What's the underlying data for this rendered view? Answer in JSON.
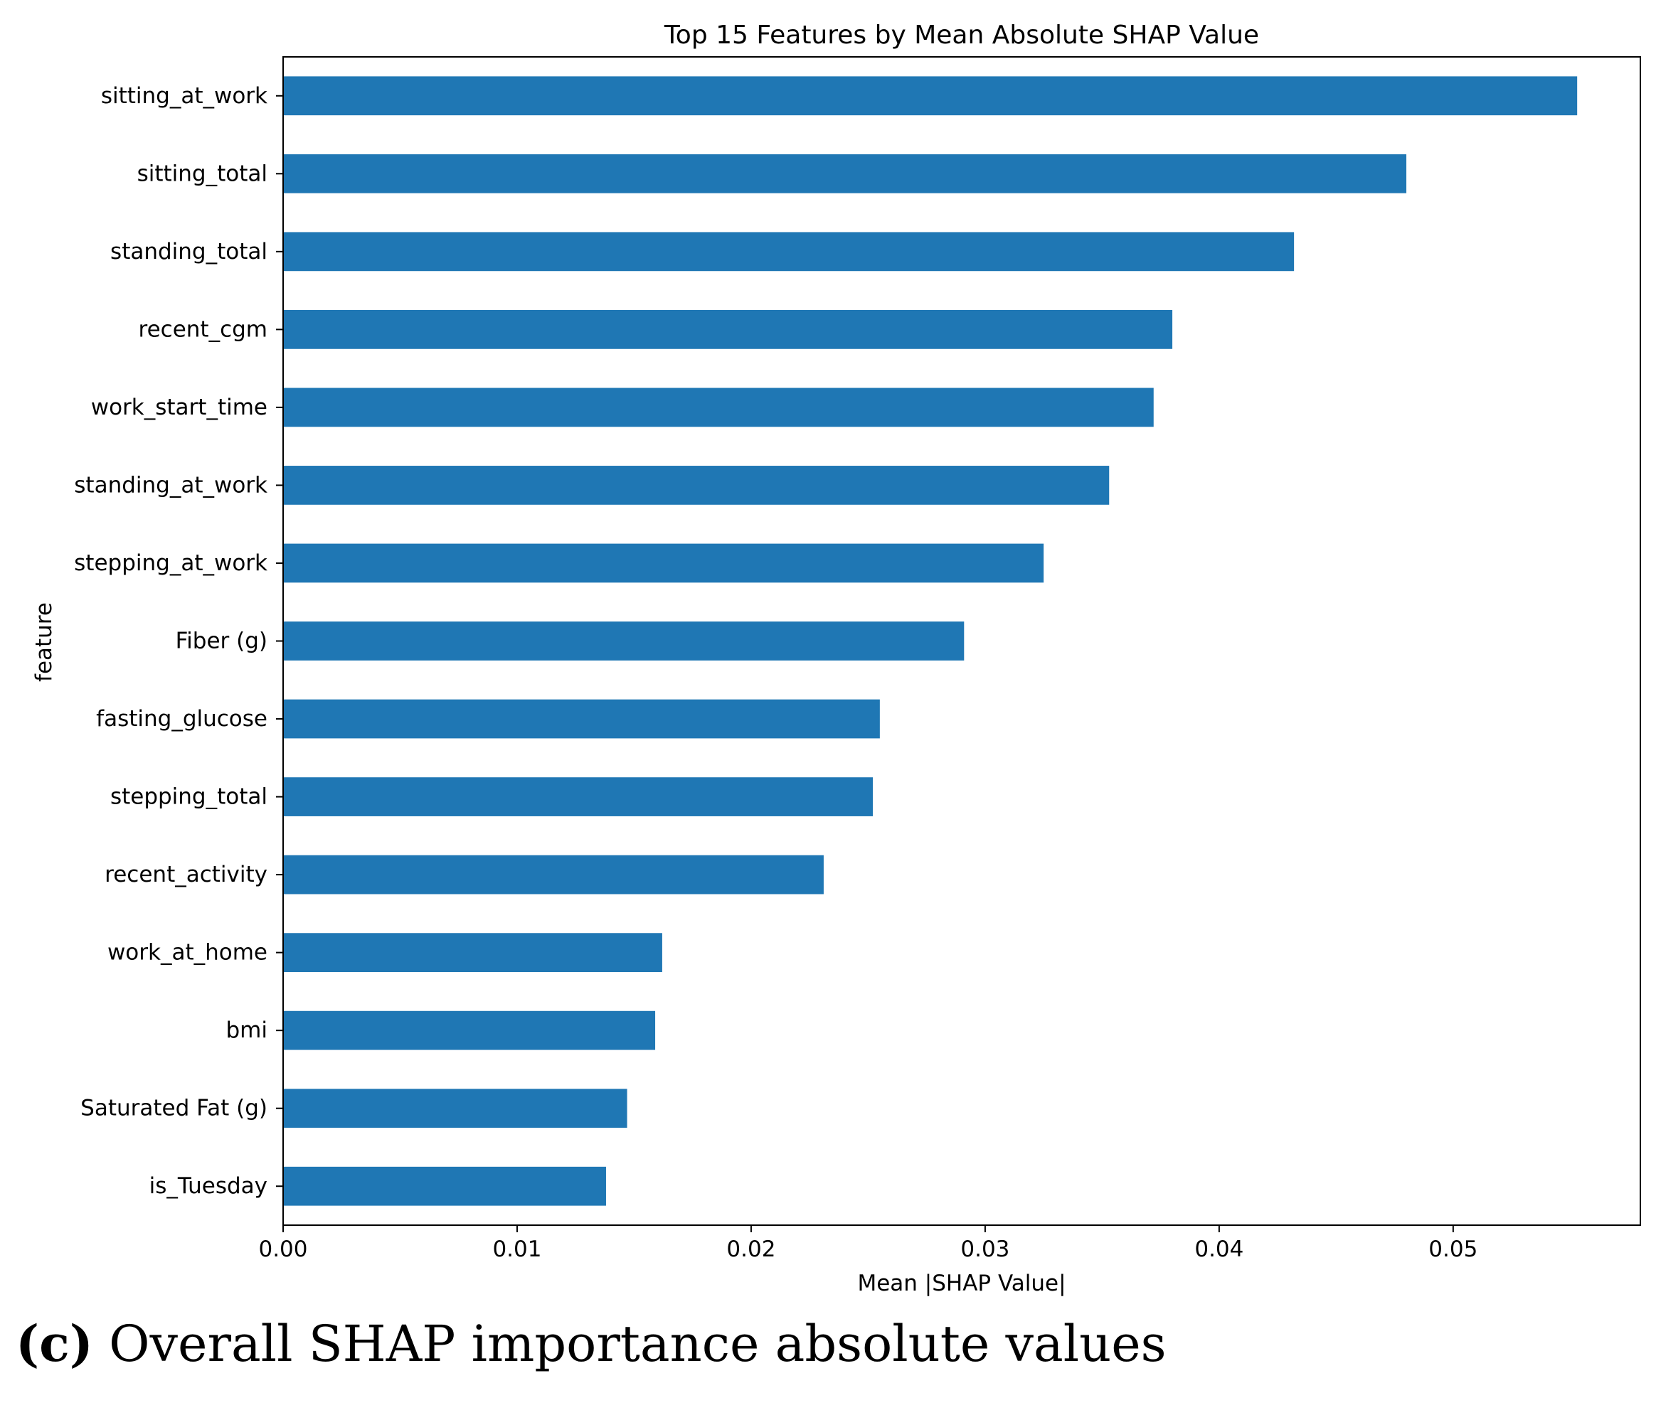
{
  "chart_data": {
    "type": "bar",
    "orientation": "horizontal",
    "title": "Top 15 Features by Mean Absolute SHAP Value",
    "xlabel": "Mean |SHAP Value|",
    "ylabel": "feature",
    "xlim": [
      0,
      0.058
    ],
    "xticks": [
      "0.00",
      "0.01",
      "0.02",
      "0.03",
      "0.04",
      "0.05"
    ],
    "grid": false,
    "bar_color": "#1f77b4",
    "categories": [
      "sitting_at_work",
      "sitting_total",
      "standing_total",
      "recent_cgm",
      "work_start_time",
      "standing_at_work",
      "stepping_at_work",
      "Fiber (g)",
      "fasting_glucose",
      "stepping_total",
      "recent_activity",
      "work_at_home",
      "bmi",
      "Saturated Fat (g)",
      "is_Tuesday"
    ],
    "values": [
      0.0553,
      0.048,
      0.0432,
      0.038,
      0.0372,
      0.0353,
      0.0325,
      0.0291,
      0.0255,
      0.0252,
      0.0231,
      0.0162,
      0.0159,
      0.0147,
      0.0138
    ]
  },
  "caption": {
    "label": "(c)",
    "text": " Overall SHAP importance absolute values"
  }
}
